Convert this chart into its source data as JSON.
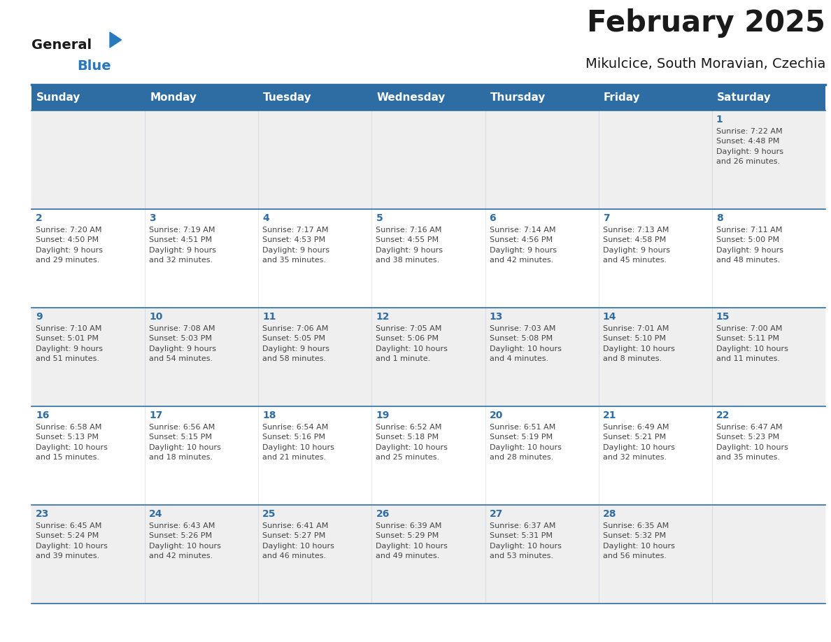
{
  "title": "February 2025",
  "subtitle": "Mikulcice, South Moravian, Czechia",
  "header_bg": "#2E6DA4",
  "header_text_color": "#FFFFFF",
  "cell_bg_odd": "#EFEFEF",
  "cell_bg_even": "#FFFFFF",
  "day_number_color": "#2E6DA4",
  "info_text_color": "#444444",
  "border_color": "#2E6DA4",
  "days_of_week": [
    "Sunday",
    "Monday",
    "Tuesday",
    "Wednesday",
    "Thursday",
    "Friday",
    "Saturday"
  ],
  "weeks": [
    [
      {
        "day": null,
        "info": ""
      },
      {
        "day": null,
        "info": ""
      },
      {
        "day": null,
        "info": ""
      },
      {
        "day": null,
        "info": ""
      },
      {
        "day": null,
        "info": ""
      },
      {
        "day": null,
        "info": ""
      },
      {
        "day": "1",
        "info": "Sunrise: 7:22 AM\nSunset: 4:48 PM\nDaylight: 9 hours\nand 26 minutes."
      }
    ],
    [
      {
        "day": "2",
        "info": "Sunrise: 7:20 AM\nSunset: 4:50 PM\nDaylight: 9 hours\nand 29 minutes."
      },
      {
        "day": "3",
        "info": "Sunrise: 7:19 AM\nSunset: 4:51 PM\nDaylight: 9 hours\nand 32 minutes."
      },
      {
        "day": "4",
        "info": "Sunrise: 7:17 AM\nSunset: 4:53 PM\nDaylight: 9 hours\nand 35 minutes."
      },
      {
        "day": "5",
        "info": "Sunrise: 7:16 AM\nSunset: 4:55 PM\nDaylight: 9 hours\nand 38 minutes."
      },
      {
        "day": "6",
        "info": "Sunrise: 7:14 AM\nSunset: 4:56 PM\nDaylight: 9 hours\nand 42 minutes."
      },
      {
        "day": "7",
        "info": "Sunrise: 7:13 AM\nSunset: 4:58 PM\nDaylight: 9 hours\nand 45 minutes."
      },
      {
        "day": "8",
        "info": "Sunrise: 7:11 AM\nSunset: 5:00 PM\nDaylight: 9 hours\nand 48 minutes."
      }
    ],
    [
      {
        "day": "9",
        "info": "Sunrise: 7:10 AM\nSunset: 5:01 PM\nDaylight: 9 hours\nand 51 minutes."
      },
      {
        "day": "10",
        "info": "Sunrise: 7:08 AM\nSunset: 5:03 PM\nDaylight: 9 hours\nand 54 minutes."
      },
      {
        "day": "11",
        "info": "Sunrise: 7:06 AM\nSunset: 5:05 PM\nDaylight: 9 hours\nand 58 minutes."
      },
      {
        "day": "12",
        "info": "Sunrise: 7:05 AM\nSunset: 5:06 PM\nDaylight: 10 hours\nand 1 minute."
      },
      {
        "day": "13",
        "info": "Sunrise: 7:03 AM\nSunset: 5:08 PM\nDaylight: 10 hours\nand 4 minutes."
      },
      {
        "day": "14",
        "info": "Sunrise: 7:01 AM\nSunset: 5:10 PM\nDaylight: 10 hours\nand 8 minutes."
      },
      {
        "day": "15",
        "info": "Sunrise: 7:00 AM\nSunset: 5:11 PM\nDaylight: 10 hours\nand 11 minutes."
      }
    ],
    [
      {
        "day": "16",
        "info": "Sunrise: 6:58 AM\nSunset: 5:13 PM\nDaylight: 10 hours\nand 15 minutes."
      },
      {
        "day": "17",
        "info": "Sunrise: 6:56 AM\nSunset: 5:15 PM\nDaylight: 10 hours\nand 18 minutes."
      },
      {
        "day": "18",
        "info": "Sunrise: 6:54 AM\nSunset: 5:16 PM\nDaylight: 10 hours\nand 21 minutes."
      },
      {
        "day": "19",
        "info": "Sunrise: 6:52 AM\nSunset: 5:18 PM\nDaylight: 10 hours\nand 25 minutes."
      },
      {
        "day": "20",
        "info": "Sunrise: 6:51 AM\nSunset: 5:19 PM\nDaylight: 10 hours\nand 28 minutes."
      },
      {
        "day": "21",
        "info": "Sunrise: 6:49 AM\nSunset: 5:21 PM\nDaylight: 10 hours\nand 32 minutes."
      },
      {
        "day": "22",
        "info": "Sunrise: 6:47 AM\nSunset: 5:23 PM\nDaylight: 10 hours\nand 35 minutes."
      }
    ],
    [
      {
        "day": "23",
        "info": "Sunrise: 6:45 AM\nSunset: 5:24 PM\nDaylight: 10 hours\nand 39 minutes."
      },
      {
        "day": "24",
        "info": "Sunrise: 6:43 AM\nSunset: 5:26 PM\nDaylight: 10 hours\nand 42 minutes."
      },
      {
        "day": "25",
        "info": "Sunrise: 6:41 AM\nSunset: 5:27 PM\nDaylight: 10 hours\nand 46 minutes."
      },
      {
        "day": "26",
        "info": "Sunrise: 6:39 AM\nSunset: 5:29 PM\nDaylight: 10 hours\nand 49 minutes."
      },
      {
        "day": "27",
        "info": "Sunrise: 6:37 AM\nSunset: 5:31 PM\nDaylight: 10 hours\nand 53 minutes."
      },
      {
        "day": "28",
        "info": "Sunrise: 6:35 AM\nSunset: 5:32 PM\nDaylight: 10 hours\nand 56 minutes."
      },
      {
        "day": null,
        "info": ""
      }
    ]
  ],
  "logo_general_color": "#1a1a1a",
  "logo_blue_color": "#2878BE",
  "logo_triangle_color": "#2878BE",
  "title_fontsize": 30,
  "subtitle_fontsize": 14,
  "header_fontsize": 11,
  "day_num_fontsize": 10,
  "info_fontsize": 8
}
